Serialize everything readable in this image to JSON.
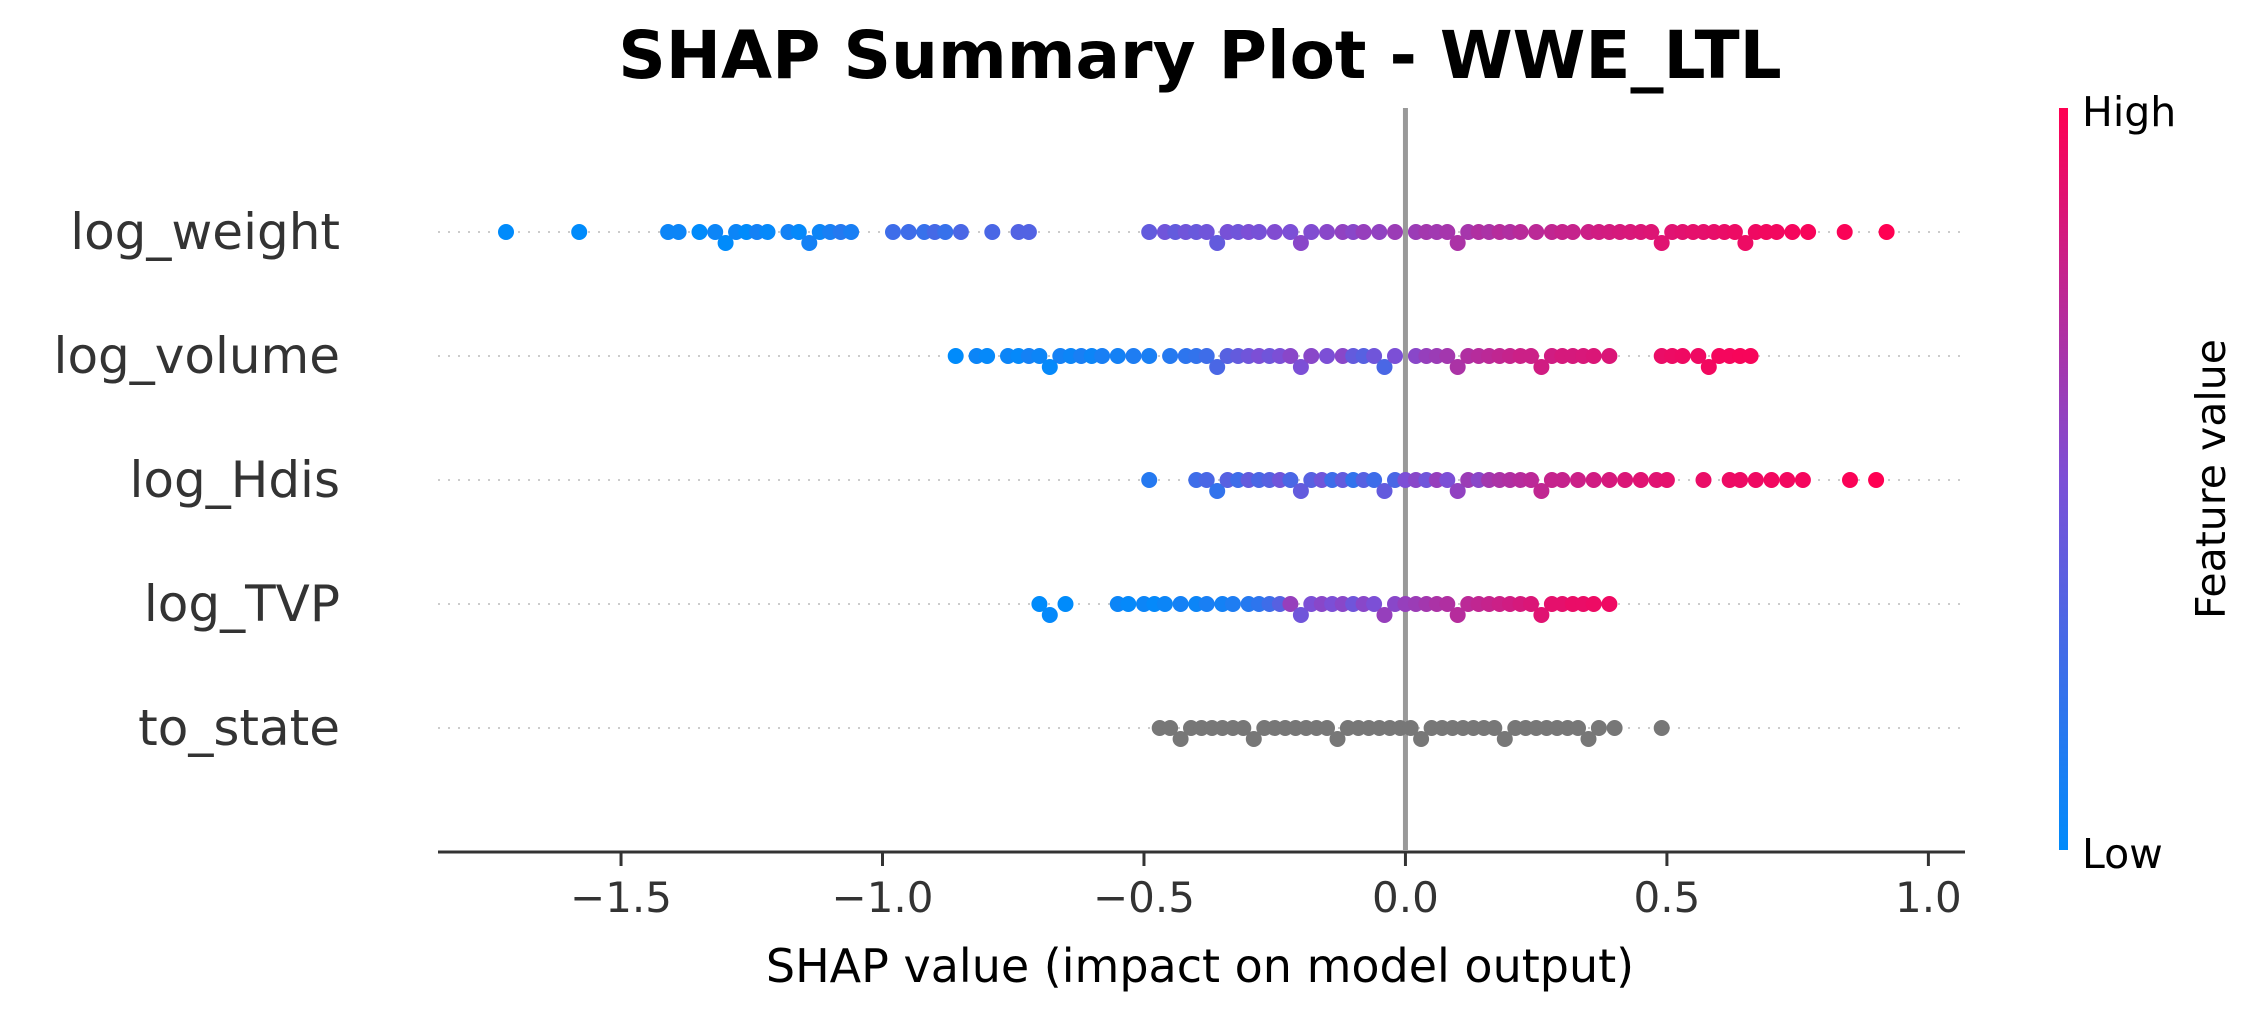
{
  "chart_data": {
    "type": "scatter",
    "subtype": "shap-beeswarm",
    "title": "SHAP Summary Plot - WWE_LTL",
    "xlabel": "SHAP value (impact on model output)",
    "xlim": [
      -1.85,
      1.07
    ],
    "xticks": [
      -1.5,
      -1.0,
      -0.5,
      0.0,
      0.5,
      1.0
    ],
    "xtick_labels": [
      "−1.5",
      "−1.0",
      "−0.5",
      "0.0",
      "0.5",
      "1.0"
    ],
    "reference_line": 0.0,
    "grid": false,
    "features": [
      {
        "name": "log_weight",
        "color_mode": "gradient",
        "points": [
          [
            -1.72,
            0.0
          ],
          [
            -1.58,
            0.0
          ],
          [
            -1.41,
            0.05
          ],
          [
            -1.39,
            0.05
          ],
          [
            -1.35,
            0.0
          ],
          [
            -1.32,
            0.05
          ],
          [
            -1.3,
            0.0
          ],
          [
            -1.28,
            0.05
          ],
          [
            -1.26,
            0.0
          ],
          [
            -1.24,
            0.08
          ],
          [
            -1.22,
            0.02
          ],
          [
            -1.18,
            0.08
          ],
          [
            -1.16,
            0.02
          ],
          [
            -1.14,
            0.08
          ],
          [
            -1.12,
            0.05
          ],
          [
            -1.1,
            0.1
          ],
          [
            -1.08,
            0.15
          ],
          [
            -1.06,
            0.1
          ],
          [
            -0.98,
            0.25
          ],
          [
            -0.95,
            0.25
          ],
          [
            -0.92,
            0.22
          ],
          [
            -0.9,
            0.28
          ],
          [
            -0.88,
            0.22
          ],
          [
            -0.85,
            0.3
          ],
          [
            -0.79,
            0.3
          ],
          [
            -0.74,
            0.33
          ],
          [
            -0.72,
            0.33
          ],
          [
            -0.49,
            0.4
          ],
          [
            -0.46,
            0.45
          ],
          [
            -0.44,
            0.4
          ],
          [
            -0.42,
            0.45
          ],
          [
            -0.4,
            0.42
          ],
          [
            -0.38,
            0.45
          ],
          [
            -0.36,
            0.4
          ],
          [
            -0.34,
            0.48
          ],
          [
            -0.32,
            0.45
          ],
          [
            -0.3,
            0.5
          ],
          [
            -0.28,
            0.48
          ],
          [
            -0.25,
            0.52
          ],
          [
            -0.22,
            0.5
          ],
          [
            -0.2,
            0.55
          ],
          [
            -0.18,
            0.52
          ],
          [
            -0.15,
            0.55
          ],
          [
            -0.12,
            0.58
          ],
          [
            -0.1,
            0.55
          ],
          [
            -0.08,
            0.6
          ],
          [
            -0.05,
            0.58
          ],
          [
            -0.02,
            0.62
          ],
          [
            0.02,
            0.62
          ],
          [
            0.04,
            0.65
          ],
          [
            0.06,
            0.64
          ],
          [
            0.08,
            0.66
          ],
          [
            0.1,
            0.68
          ],
          [
            0.12,
            0.66
          ],
          [
            0.14,
            0.7
          ],
          [
            0.16,
            0.68
          ],
          [
            0.18,
            0.72
          ],
          [
            0.2,
            0.7
          ],
          [
            0.22,
            0.73
          ],
          [
            0.25,
            0.74
          ],
          [
            0.28,
            0.76
          ],
          [
            0.3,
            0.78
          ],
          [
            0.32,
            0.78
          ],
          [
            0.35,
            0.8
          ],
          [
            0.37,
            0.82
          ],
          [
            0.39,
            0.83
          ],
          [
            0.41,
            0.84
          ],
          [
            0.43,
            0.85
          ],
          [
            0.45,
            0.86
          ],
          [
            0.47,
            0.87
          ],
          [
            0.49,
            0.88
          ],
          [
            0.51,
            0.88
          ],
          [
            0.53,
            0.89
          ],
          [
            0.55,
            0.9
          ],
          [
            0.57,
            0.9
          ],
          [
            0.59,
            0.91
          ],
          [
            0.61,
            0.92
          ],
          [
            0.63,
            0.93
          ],
          [
            0.65,
            0.93
          ],
          [
            0.67,
            0.94
          ],
          [
            0.69,
            0.95
          ],
          [
            0.71,
            0.95
          ],
          [
            0.74,
            0.96
          ],
          [
            0.77,
            0.97
          ],
          [
            0.84,
            0.98
          ],
          [
            0.92,
            1.0
          ]
        ]
      },
      {
        "name": "log_volume",
        "color_mode": "gradient",
        "points": [
          [
            -0.86,
            0.0
          ],
          [
            -0.82,
            0.05
          ],
          [
            -0.8,
            0.02
          ],
          [
            -0.76,
            0.05
          ],
          [
            -0.74,
            0.02
          ],
          [
            -0.72,
            0.08
          ],
          [
            -0.7,
            0.05
          ],
          [
            -0.68,
            0.02
          ],
          [
            -0.66,
            0.08
          ],
          [
            -0.64,
            0.05
          ],
          [
            -0.62,
            0.1
          ],
          [
            -0.6,
            0.05
          ],
          [
            -0.58,
            0.1
          ],
          [
            -0.55,
            0.08
          ],
          [
            -0.52,
            0.12
          ],
          [
            -0.49,
            0.1
          ],
          [
            -0.45,
            0.15
          ],
          [
            -0.42,
            0.18
          ],
          [
            -0.4,
            0.2
          ],
          [
            -0.38,
            0.25
          ],
          [
            -0.36,
            0.3
          ],
          [
            -0.34,
            0.35
          ],
          [
            -0.32,
            0.4
          ],
          [
            -0.3,
            0.45
          ],
          [
            -0.28,
            0.5
          ],
          [
            -0.26,
            0.45
          ],
          [
            -0.24,
            0.5
          ],
          [
            -0.22,
            0.55
          ],
          [
            -0.2,
            0.5
          ],
          [
            -0.18,
            0.55
          ],
          [
            -0.15,
            0.5
          ],
          [
            -0.12,
            0.55
          ],
          [
            -0.1,
            0.4
          ],
          [
            -0.08,
            0.35
          ],
          [
            -0.06,
            0.45
          ],
          [
            -0.04,
            0.3
          ],
          [
            -0.02,
            0.5
          ],
          [
            0.02,
            0.55
          ],
          [
            0.04,
            0.6
          ],
          [
            0.06,
            0.62
          ],
          [
            0.08,
            0.65
          ],
          [
            0.1,
            0.68
          ],
          [
            0.12,
            0.7
          ],
          [
            0.14,
            0.72
          ],
          [
            0.16,
            0.74
          ],
          [
            0.18,
            0.76
          ],
          [
            0.2,
            0.78
          ],
          [
            0.22,
            0.8
          ],
          [
            0.24,
            0.8
          ],
          [
            0.26,
            0.82
          ],
          [
            0.28,
            0.82
          ],
          [
            0.3,
            0.84
          ],
          [
            0.32,
            0.84
          ],
          [
            0.34,
            0.85
          ],
          [
            0.36,
            0.86
          ],
          [
            0.39,
            0.86
          ],
          [
            0.49,
            0.92
          ],
          [
            0.51,
            0.93
          ],
          [
            0.53,
            0.94
          ],
          [
            0.56,
            0.94
          ],
          [
            0.58,
            0.95
          ],
          [
            0.6,
            0.96
          ],
          [
            0.62,
            0.96
          ],
          [
            0.64,
            0.97
          ],
          [
            0.66,
            0.97
          ]
        ]
      },
      {
        "name": "log_Hdis",
        "color_mode": "gradient",
        "points": [
          [
            -0.49,
            0.15
          ],
          [
            -0.4,
            0.25
          ],
          [
            -0.38,
            0.3
          ],
          [
            -0.36,
            0.2
          ],
          [
            -0.34,
            0.35
          ],
          [
            -0.32,
            0.25
          ],
          [
            -0.3,
            0.4
          ],
          [
            -0.28,
            0.3
          ],
          [
            -0.26,
            0.35
          ],
          [
            -0.24,
            0.45
          ],
          [
            -0.22,
            0.3
          ],
          [
            -0.2,
            0.4
          ],
          [
            -0.18,
            0.35
          ],
          [
            -0.16,
            0.45
          ],
          [
            -0.14,
            0.25
          ],
          [
            -0.12,
            0.4
          ],
          [
            -0.1,
            0.2
          ],
          [
            -0.08,
            0.35
          ],
          [
            -0.06,
            0.25
          ],
          [
            -0.04,
            0.4
          ],
          [
            -0.02,
            0.3
          ],
          [
            0.0,
            0.5
          ],
          [
            0.02,
            0.55
          ],
          [
            0.04,
            0.45
          ],
          [
            0.06,
            0.6
          ],
          [
            0.08,
            0.5
          ],
          [
            0.1,
            0.58
          ],
          [
            0.12,
            0.62
          ],
          [
            0.14,
            0.55
          ],
          [
            0.16,
            0.65
          ],
          [
            0.18,
            0.68
          ],
          [
            0.2,
            0.7
          ],
          [
            0.22,
            0.72
          ],
          [
            0.24,
            0.74
          ],
          [
            0.26,
            0.76
          ],
          [
            0.28,
            0.78
          ],
          [
            0.3,
            0.78
          ],
          [
            0.33,
            0.8
          ],
          [
            0.36,
            0.82
          ],
          [
            0.39,
            0.84
          ],
          [
            0.42,
            0.86
          ],
          [
            0.45,
            0.88
          ],
          [
            0.48,
            0.88
          ],
          [
            0.5,
            0.9
          ],
          [
            0.57,
            0.92
          ],
          [
            0.62,
            0.93
          ],
          [
            0.64,
            0.93
          ],
          [
            0.67,
            0.94
          ],
          [
            0.7,
            0.95
          ],
          [
            0.73,
            0.95
          ],
          [
            0.76,
            0.96
          ],
          [
            0.85,
            0.98
          ],
          [
            0.9,
            1.0
          ]
        ]
      },
      {
        "name": "log_TVP",
        "color_mode": "gradient",
        "points": [
          [
            -0.7,
            0.0
          ],
          [
            -0.68,
            0.02
          ],
          [
            -0.65,
            0.0
          ],
          [
            -0.55,
            0.05
          ],
          [
            -0.53,
            0.02
          ],
          [
            -0.5,
            0.05
          ],
          [
            -0.48,
            0.02
          ],
          [
            -0.46,
            0.05
          ],
          [
            -0.43,
            0.08
          ],
          [
            -0.4,
            0.05
          ],
          [
            -0.38,
            0.1
          ],
          [
            -0.35,
            0.08
          ],
          [
            -0.33,
            0.12
          ],
          [
            -0.3,
            0.15
          ],
          [
            -0.28,
            0.18
          ],
          [
            -0.26,
            0.25
          ],
          [
            -0.24,
            0.35
          ],
          [
            -0.22,
            0.6
          ],
          [
            -0.2,
            0.45
          ],
          [
            -0.18,
            0.5
          ],
          [
            -0.16,
            0.55
          ],
          [
            -0.14,
            0.5
          ],
          [
            -0.12,
            0.55
          ],
          [
            -0.1,
            0.45
          ],
          [
            -0.08,
            0.55
          ],
          [
            -0.06,
            0.5
          ],
          [
            -0.04,
            0.6
          ],
          [
            -0.02,
            0.55
          ],
          [
            0.0,
            0.6
          ],
          [
            0.02,
            0.62
          ],
          [
            0.04,
            0.65
          ],
          [
            0.06,
            0.68
          ],
          [
            0.08,
            0.7
          ],
          [
            0.1,
            0.72
          ],
          [
            0.12,
            0.74
          ],
          [
            0.14,
            0.76
          ],
          [
            0.16,
            0.78
          ],
          [
            0.18,
            0.8
          ],
          [
            0.2,
            0.82
          ],
          [
            0.22,
            0.84
          ],
          [
            0.24,
            0.86
          ],
          [
            0.26,
            0.88
          ],
          [
            0.28,
            0.9
          ],
          [
            0.3,
            0.9
          ],
          [
            0.32,
            0.92
          ],
          [
            0.34,
            0.92
          ],
          [
            0.36,
            0.93
          ],
          [
            0.39,
            0.94
          ]
        ]
      },
      {
        "name": "to_state",
        "color_mode": "gray",
        "points": [
          [
            -0.47,
            null
          ],
          [
            -0.45,
            null
          ],
          [
            -0.43,
            null
          ],
          [
            -0.41,
            null
          ],
          [
            -0.39,
            null
          ],
          [
            -0.37,
            null
          ],
          [
            -0.35,
            null
          ],
          [
            -0.33,
            null
          ],
          [
            -0.31,
            null
          ],
          [
            -0.29,
            null
          ],
          [
            -0.27,
            null
          ],
          [
            -0.25,
            null
          ],
          [
            -0.23,
            null
          ],
          [
            -0.21,
            null
          ],
          [
            -0.19,
            null
          ],
          [
            -0.17,
            null
          ],
          [
            -0.15,
            null
          ],
          [
            -0.13,
            null
          ],
          [
            -0.11,
            null
          ],
          [
            -0.09,
            null
          ],
          [
            -0.07,
            null
          ],
          [
            -0.05,
            null
          ],
          [
            -0.03,
            null
          ],
          [
            -0.01,
            null
          ],
          [
            0.01,
            null
          ],
          [
            0.03,
            null
          ],
          [
            0.05,
            null
          ],
          [
            0.07,
            null
          ],
          [
            0.09,
            null
          ],
          [
            0.11,
            null
          ],
          [
            0.13,
            null
          ],
          [
            0.15,
            null
          ],
          [
            0.17,
            null
          ],
          [
            0.19,
            null
          ],
          [
            0.21,
            null
          ],
          [
            0.23,
            null
          ],
          [
            0.25,
            null
          ],
          [
            0.27,
            null
          ],
          [
            0.29,
            null
          ],
          [
            0.31,
            null
          ],
          [
            0.33,
            null
          ],
          [
            0.35,
            null
          ],
          [
            0.37,
            null
          ],
          [
            0.4,
            null
          ],
          [
            0.49,
            null
          ]
        ]
      }
    ],
    "colorbar": {
      "label": "Feature value",
      "high_label": "High",
      "low_label": "Low",
      "low_color": "#008bfb",
      "high_color": "#ff0052"
    },
    "gray_color": "#777777"
  }
}
